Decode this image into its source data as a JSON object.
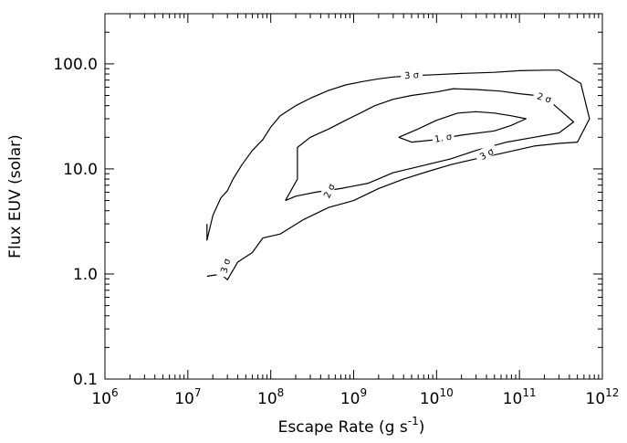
{
  "chart_data": {
    "type": "line",
    "title": "",
    "xlabel": "Escape Rate (g s",
    "xlabel_sup": "-1",
    "xlabel_suffix": ")",
    "ylabel": "Flux EUV (solar)",
    "xscale": "log",
    "yscale": "log",
    "xlim": [
      1000000.0,
      1000000000000.0
    ],
    "ylim": [
      0.1,
      300.0
    ],
    "x_tick_labels": [
      {
        "base": "10",
        "exp": "6",
        "value": 1000000.0
      },
      {
        "base": "10",
        "exp": "7",
        "value": 10000000.0
      },
      {
        "base": "10",
        "exp": "8",
        "value": 100000000.0
      },
      {
        "base": "10",
        "exp": "9",
        "value": 1000000000.0
      },
      {
        "base": "10",
        "exp": "10",
        "value": 10000000000.0
      },
      {
        "base": "10",
        "exp": "11",
        "value": 100000000000.0
      },
      {
        "base": "10",
        "exp": "12",
        "value": 1000000000000.0
      }
    ],
    "y_tick_labels": [
      {
        "text": "0.1",
        "value": 0.1
      },
      {
        "text": "1.0",
        "value": 1.0
      },
      {
        "text": "10.0",
        "value": 10.0
      },
      {
        "text": "100.0",
        "value": 100.0
      }
    ],
    "grid": false,
    "legend": "none",
    "series": [
      {
        "name": "3 σ",
        "x": [
          17000000.0,
          17000000.0,
          20000000.0,
          25000000.0,
          30000000.0,
          35000000.0,
          45000000.0,
          60000000.0,
          80000000.0,
          100000000.0,
          130000000.0,
          200000000.0,
          300000000.0,
          500000000.0,
          800000000.0,
          1300000000.0,
          2000000000.0,
          3000000000.0,
          5000000000.0,
          10000000000.0,
          20000000000.0,
          50000000000.0,
          100000000000.0,
          200000000000.0,
          300000000000.0,
          550000000000.0,
          700000000000.0,
          500000000000.0,
          300000000000.0,
          150000000000.0,
          60000000000.0,
          30000000000.0,
          15000000000.0,
          8000000000.0,
          4000000000.0,
          2000000000.0,
          1000000000.0,
          500000000.0,
          250000000.0,
          130000000.0,
          80000000.0,
          60000000.0,
          40000000.0,
          30000000.0,
          25000000.0,
          17000000.0
        ],
        "y": [
          3.0,
          2.1,
          3.6,
          5.3,
          6.2,
          8.0,
          11,
          15,
          19,
          25,
          32,
          40,
          47,
          56,
          63,
          68,
          72,
          75,
          77,
          79,
          81,
          83,
          86,
          87,
          87,
          65,
          30,
          18,
          17.5,
          16.5,
          14,
          12.5,
          11,
          9.5,
          8,
          6.5,
          5,
          4.3,
          3.3,
          2.4,
          2.2,
          1.6,
          1.3,
          0.88,
          1.0,
          0.95
        ]
      },
      {
        "name": "2 σ",
        "x": [
          150000000.0,
          210000000.0,
          210000000.0,
          300000000.0,
          500000000.0,
          800000000.0,
          1200000000.0,
          1800000000.0,
          3000000000.0,
          5000000000.0,
          10000000000.0,
          16000000000.0,
          30000000000.0,
          60000000000.0,
          100000000000.0,
          200000000000.0,
          300000000000.0,
          450000000000.0,
          300000000000.0,
          150000000000.0,
          70000000000.0,
          30000000000.0,
          15000000000.0,
          7000000000.0,
          3000000000.0,
          1500000000.0,
          700000000.0,
          350000000.0,
          200000000.0,
          150000000.0
        ],
        "y": [
          5.0,
          8.0,
          16.0,
          20.0,
          24.0,
          29.0,
          34.0,
          40.0,
          46.0,
          50.0,
          54.0,
          58.0,
          57.0,
          55.0,
          52.0,
          49.0,
          37.0,
          28.0,
          22.0,
          20.0,
          18.0,
          15.0,
          12.5,
          10.8,
          9.2,
          7.3,
          6.5,
          6.0,
          5.5,
          5.0
        ]
      },
      {
        "name": "1. σ",
        "x": [
          3500000000.0,
          6000000000.0,
          10000000000.0,
          18000000000.0,
          30000000000.0,
          50000000000.0,
          80000000000.0,
          120000000000.0,
          80000000000.0,
          50000000000.0,
          20000000000.0,
          10000000000.0,
          5000000000.0,
          3500000000.0
        ],
        "y": [
          20.0,
          24.0,
          29.0,
          34.0,
          35.0,
          34.0,
          32.0,
          30.0,
          26.0,
          23.0,
          21.0,
          19.0,
          18.0,
          20.0
        ]
      }
    ],
    "contour_labels": [
      {
        "text": "3 σ",
        "x": 5000000000.0,
        "y": 79,
        "rotate": -4
      },
      {
        "text": "2 σ",
        "x": 200000000000.0,
        "y": 48,
        "rotate": 18
      },
      {
        "text": "1. σ",
        "x": 12000000000.0,
        "y": 20,
        "rotate": -10
      },
      {
        "text": "3 σ",
        "x": 40000000000.0,
        "y": 14,
        "rotate": -30
      },
      {
        "text": "2 σ",
        "x": 500000000.0,
        "y": 6.2,
        "rotate": -65
      },
      {
        "text": "3 σ",
        "x": 28000000.0,
        "y": 1.2,
        "rotate": -75
      }
    ],
    "colors": {
      "line": "#000000",
      "background": "#ffffff"
    }
  }
}
